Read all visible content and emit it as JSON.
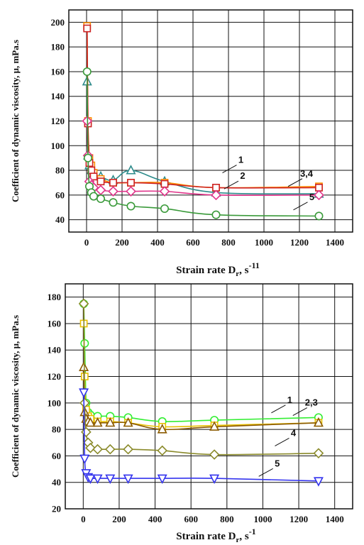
{
  "chart_data": [
    {
      "type": "line",
      "xlabel_main": "Strain rate D",
      "xlabel_sub": "r",
      "xlabel_tail": ", s",
      "xlabel_sup": "-11",
      "ylabel": "Coefficient of dynamic viscosity, μ, mPa.s",
      "xlim": [
        -100,
        1500
      ],
      "ylim": [
        30,
        210
      ],
      "xticks": [
        0,
        200,
        400,
        600,
        800,
        1000,
        1200,
        1400
      ],
      "yticks": [
        40,
        60,
        80,
        100,
        120,
        140,
        160,
        180,
        200
      ],
      "grid": true,
      "annotations": [
        {
          "text": "1",
          "x": 870,
          "y": 86
        },
        {
          "text": "2",
          "x": 880,
          "y": 73
        },
        {
          "text": "3,4",
          "x": 1240,
          "y": 75
        },
        {
          "text": "5",
          "x": 1270,
          "y": 56
        }
      ],
      "series": [
        {
          "id": "1",
          "color": "#2e8b8b",
          "marker": "triangle",
          "x": [
            3,
            8,
            16,
            27,
            40,
            80,
            150,
            250,
            440,
            730,
            1310
          ],
          "y": [
            152,
            92,
            84,
            80,
            77,
            75,
            72,
            80,
            71,
            62,
            61
          ]
        },
        {
          "id": "2",
          "color": "#ff8c00",
          "marker": "square",
          "x": [
            3,
            8,
            16,
            27,
            40,
            80,
            150,
            250,
            440,
            730,
            1310
          ],
          "y": [
            197,
            120,
            90,
            84,
            78,
            73,
            70,
            70,
            70,
            66,
            67
          ]
        },
        {
          "id": "3",
          "color": "#cc2222",
          "marker": "square",
          "x": [
            3,
            8,
            16,
            27,
            40,
            80,
            150,
            250,
            440,
            730,
            1310
          ],
          "y": [
            195,
            118,
            86,
            80,
            75,
            71,
            70,
            70,
            69,
            66,
            66
          ]
        },
        {
          "id": "4",
          "color": "#e0338a",
          "marker": "diamond",
          "x": [
            3,
            8,
            16,
            27,
            40,
            80,
            150,
            250,
            440,
            730,
            1310
          ],
          "y": [
            120,
            92,
            71,
            68,
            66,
            64,
            63,
            63,
            63,
            60,
            60
          ]
        },
        {
          "id": "5",
          "color": "#3a9a3a",
          "marker": "circle",
          "x": [
            3,
            8,
            16,
            27,
            40,
            80,
            150,
            250,
            440,
            730,
            1310
          ],
          "y": [
            160,
            90,
            67,
            62,
            59,
            57,
            54,
            51,
            49,
            44,
            43
          ]
        }
      ]
    },
    {
      "type": "line",
      "xlabel_main": "Strain rate D",
      "xlabel_sub": "r",
      "xlabel_tail": ", s",
      "xlabel_sup": "-1",
      "ylabel": "Coefficient of dynamic viscosity, μ, mPa.s",
      "xlim": [
        -100,
        1500
      ],
      "ylim": [
        20,
        190
      ],
      "xticks": [
        0,
        200,
        400,
        600,
        800,
        1000,
        1200,
        1400
      ],
      "yticks": [
        20,
        40,
        60,
        80,
        100,
        120,
        140,
        160,
        180
      ],
      "grid": true,
      "annotations": [
        {
          "text": "1",
          "x": 1150,
          "y": 100
        },
        {
          "text": "2,3",
          "x": 1270,
          "y": 98
        },
        {
          "text": "4",
          "x": 1170,
          "y": 75
        },
        {
          "text": "5",
          "x": 1080,
          "y": 52
        }
      ],
      "series": [
        {
          "id": "1",
          "color": "#33ee33",
          "marker": "circle",
          "x": [
            3,
            8,
            16,
            27,
            40,
            80,
            150,
            250,
            440,
            730,
            1310
          ],
          "y": [
            175,
            145,
            100,
            93,
            91,
            90,
            90,
            89,
            86,
            87,
            89
          ]
        },
        {
          "id": "2",
          "color": "#e8c000",
          "marker": "square",
          "x": [
            3,
            8,
            16,
            27,
            40,
            80,
            150,
            250,
            440,
            730,
            1310
          ],
          "y": [
            160,
            120,
            95,
            90,
            88,
            86,
            86,
            85,
            82,
            83,
            85
          ]
        },
        {
          "id": "3",
          "color": "#8b5a00",
          "marker": "triangle",
          "x": [
            3,
            8,
            16,
            27,
            40,
            80,
            150,
            250,
            440,
            730,
            1310
          ],
          "y": [
            127,
            93,
            88,
            86,
            85,
            85,
            85,
            85,
            80,
            82,
            85
          ]
        },
        {
          "id": "4",
          "color": "#8a8a2a",
          "marker": "diamond",
          "x": [
            3,
            8,
            16,
            27,
            40,
            80,
            150,
            250,
            440,
            730,
            1310
          ],
          "y": [
            175,
            100,
            78,
            70,
            66,
            65,
            65,
            65,
            64,
            61,
            62
          ]
        },
        {
          "id": "5",
          "color": "#3333ee",
          "marker": "triangle-down",
          "x": [
            3,
            8,
            16,
            27,
            40,
            80,
            150,
            250,
            440,
            730,
            1310
          ],
          "y": [
            108,
            58,
            47,
            44,
            43,
            43,
            43,
            43,
            43,
            43,
            41
          ]
        }
      ]
    }
  ]
}
